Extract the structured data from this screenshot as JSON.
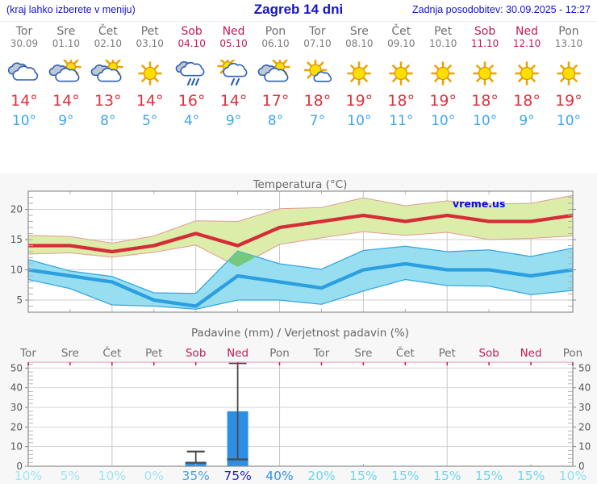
{
  "header": {
    "left_note": "(kraj lahko izberete v meniju)",
    "title": "Zagreb 14 dni",
    "updated": "Zadnja posodobitev: 30.09.2025 - 12:27"
  },
  "colors": {
    "header_blue": "#1414cc",
    "weekday_label": "#6f6f6f",
    "weekend_label": "#c2195a",
    "high_temp": "#dd3340",
    "low_temp": "#3fa6ea",
    "chart_title": "#666666"
  },
  "forecast": {
    "days": [
      {
        "name": "Tor",
        "date": "30.09",
        "weekend": false,
        "icon": "cloudy",
        "high": 14,
        "low": 10
      },
      {
        "name": "Sre",
        "date": "01.10",
        "weekend": false,
        "icon": "partly-cloudy",
        "high": 14,
        "low": 9
      },
      {
        "name": "Čet",
        "date": "02.10",
        "weekend": false,
        "icon": "partly-cloudy",
        "high": 13,
        "low": 8
      },
      {
        "name": "Pet",
        "date": "03.10",
        "weekend": false,
        "icon": "sunny",
        "high": 14,
        "low": 5
      },
      {
        "name": "Sob",
        "date": "04.10",
        "weekend": true,
        "icon": "rain",
        "high": 16,
        "low": 4
      },
      {
        "name": "Ned",
        "date": "05.10",
        "weekend": true,
        "icon": "sun-rain",
        "high": 14,
        "low": 9
      },
      {
        "name": "Pon",
        "date": "06.10",
        "weekend": false,
        "icon": "partly-cloudy",
        "high": 17,
        "low": 8
      },
      {
        "name": "Tor",
        "date": "07.10",
        "weekend": false,
        "icon": "mostly-sunny",
        "high": 18,
        "low": 7
      },
      {
        "name": "Sre",
        "date": "08.10",
        "weekend": false,
        "icon": "sunny",
        "high": 19,
        "low": 10
      },
      {
        "name": "Čet",
        "date": "09.10",
        "weekend": false,
        "icon": "sunny",
        "high": 18,
        "low": 11
      },
      {
        "name": "Pet",
        "date": "10.10",
        "weekend": false,
        "icon": "sunny",
        "high": 19,
        "low": 10
      },
      {
        "name": "Sob",
        "date": "11.10",
        "weekend": true,
        "icon": "sunny",
        "high": 18,
        "low": 10
      },
      {
        "name": "Ned",
        "date": "12.10",
        "weekend": true,
        "icon": "sunny",
        "high": 18,
        "low": 9
      },
      {
        "name": "Pon",
        "date": "13.10",
        "weekend": false,
        "icon": "sunny",
        "high": 19,
        "low": 10
      }
    ]
  },
  "chart_data": [
    {
      "type": "area",
      "title": "Temperatura (°C)",
      "watermark": "vreme.us",
      "x_count": 14,
      "ylim": [
        3,
        23
      ],
      "yticks": [
        5,
        10,
        15,
        20
      ],
      "grid_days_major": [
        2,
        4,
        6,
        8,
        10,
        12
      ],
      "grid_days_minor": [
        1,
        3,
        5,
        7,
        9,
        11,
        13
      ],
      "series": [
        {
          "name": "max_temp",
          "color": "#d42d38",
          "values": [
            14,
            14,
            13,
            14,
            16,
            14,
            17,
            18,
            19,
            18,
            19,
            18,
            18,
            19
          ]
        },
        {
          "name": "max_band_upper",
          "values": [
            15.7,
            15.5,
            14.4,
            15.6,
            18.1,
            18.0,
            20.1,
            20.3,
            21.9,
            20.6,
            21.4,
            20.9,
            21.0,
            22.3
          ]
        },
        {
          "name": "max_band_lower",
          "values": [
            12.6,
            12.8,
            12.1,
            12.9,
            14.1,
            10.5,
            14.2,
            15.3,
            16.3,
            15.7,
            16.2,
            15.0,
            15.2,
            15.6
          ]
        },
        {
          "name": "min_temp",
          "color": "#2b9fe0",
          "values": [
            10,
            9,
            8,
            5,
            4,
            9,
            8,
            7,
            10,
            11,
            10,
            10,
            9,
            10
          ]
        },
        {
          "name": "min_band_upper",
          "values": [
            11.7,
            9.8,
            8.9,
            6.2,
            6.1,
            13.1,
            11.0,
            10.1,
            13.2,
            13.9,
            13.0,
            13.3,
            12.2,
            13.6
          ]
        },
        {
          "name": "min_band_lower",
          "values": [
            8.4,
            6.9,
            4.2,
            4.0,
            3.5,
            5.0,
            5.0,
            4.3,
            6.5,
            8.4,
            7.4,
            7.3,
            5.9,
            6.6
          ]
        }
      ],
      "band_colors": {
        "max": "#dcedaa",
        "max_edge": "#e59a93",
        "min": "#97dff0",
        "min_edge": "#36a6e2",
        "overlap": "#74c97e"
      }
    },
    {
      "type": "bar",
      "title": "Padavine (mm) / Verjetnost padavin (%)",
      "categories": [
        "Tor",
        "Sre",
        "Čet",
        "Pet",
        "Sob",
        "Ned",
        "Pon",
        "Tor",
        "Sre",
        "Čet",
        "Pet",
        "Sob",
        "Ned",
        "Pon"
      ],
      "weekend": [
        false,
        false,
        false,
        false,
        true,
        true,
        false,
        false,
        false,
        false,
        false,
        true,
        true,
        false
      ],
      "precip_mm": [
        0,
        0,
        0,
        0,
        1.8,
        28,
        0,
        0,
        0,
        0,
        0,
        0,
        0,
        0
      ],
      "whisker_max_mm": [
        null,
        null,
        null,
        null,
        7.5,
        52.5,
        null,
        null,
        null,
        null,
        null,
        null,
        null,
        null
      ],
      "marker_mm": [
        null,
        null,
        null,
        null,
        1.8,
        3.5,
        null,
        null,
        null,
        null,
        null,
        null,
        null,
        null
      ],
      "probability_pct": [
        10,
        5,
        10,
        0,
        35,
        75,
        40,
        20,
        15,
        15,
        15,
        15,
        15,
        10
      ],
      "probability_colors": [
        "#9fe6f2",
        "#9fe6f2",
        "#9fe6f2",
        "#9fe6f2",
        "#47a3e6",
        "#2323c8",
        "#2f93e6",
        "#6cd8ee",
        "#6cd8ee",
        "#6cd8ee",
        "#6cd8ee",
        "#6cd8ee",
        "#6cd8ee",
        "#8ddff0"
      ],
      "ylim": [
        0,
        53
      ],
      "yticks": [
        0,
        10,
        20,
        30,
        40,
        50
      ],
      "grid_days_major": [
        2,
        6,
        10
      ],
      "grid_days_minor": [
        4,
        8,
        12
      ],
      "bar_color": "#2d8fe3"
    }
  ]
}
